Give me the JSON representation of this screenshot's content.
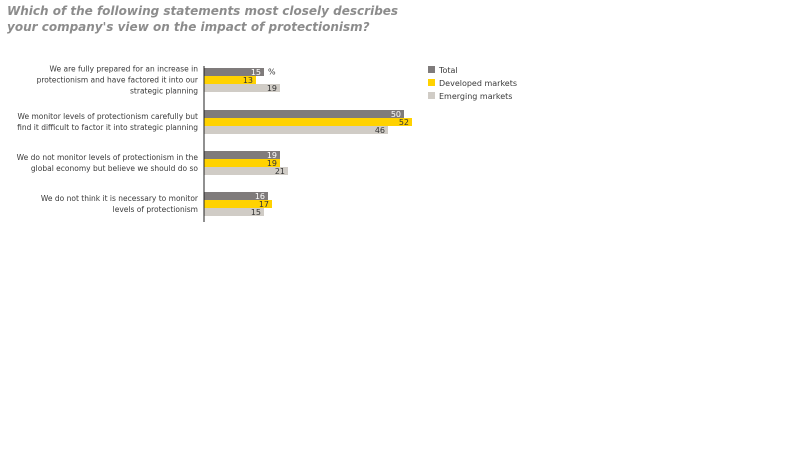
{
  "question": "Which of the following statements most closely describes your company's view on the impact of protectionism?",
  "chart_data": {
    "type": "bar",
    "orientation": "horizontal",
    "title": "Which of the following statements most closely describes your company's view on the impact of protectionism?",
    "unit_label": "%",
    "categories": [
      [
        "We are fully prepared for an increase in",
        "protectionism and have factored it into our",
        "strategic planning"
      ],
      [
        "We monitor levels of protectionism carefully but",
        "find it difficult to factor it into strategic planning"
      ],
      [
        "We do not monitor levels of protectionism in the",
        "global economy but believe we should do so"
      ],
      [
        "We do not think it is necessary to monitor",
        "levels of protectionism"
      ]
    ],
    "series": [
      {
        "name": "Total",
        "color": "#7f7b7b",
        "text_color": "#ffffff",
        "values": [
          15,
          50,
          19,
          16
        ]
      },
      {
        "name": "Developed markets",
        "color": "#ffd200",
        "text_color": "#333333",
        "values": [
          13,
          52,
          19,
          17
        ]
      },
      {
        "name": "Emerging markets",
        "color": "#d0ccc6",
        "text_color": "#333333",
        "values": [
          19,
          46,
          21,
          15
        ]
      }
    ],
    "legend_position": "right",
    "grid": false
  }
}
